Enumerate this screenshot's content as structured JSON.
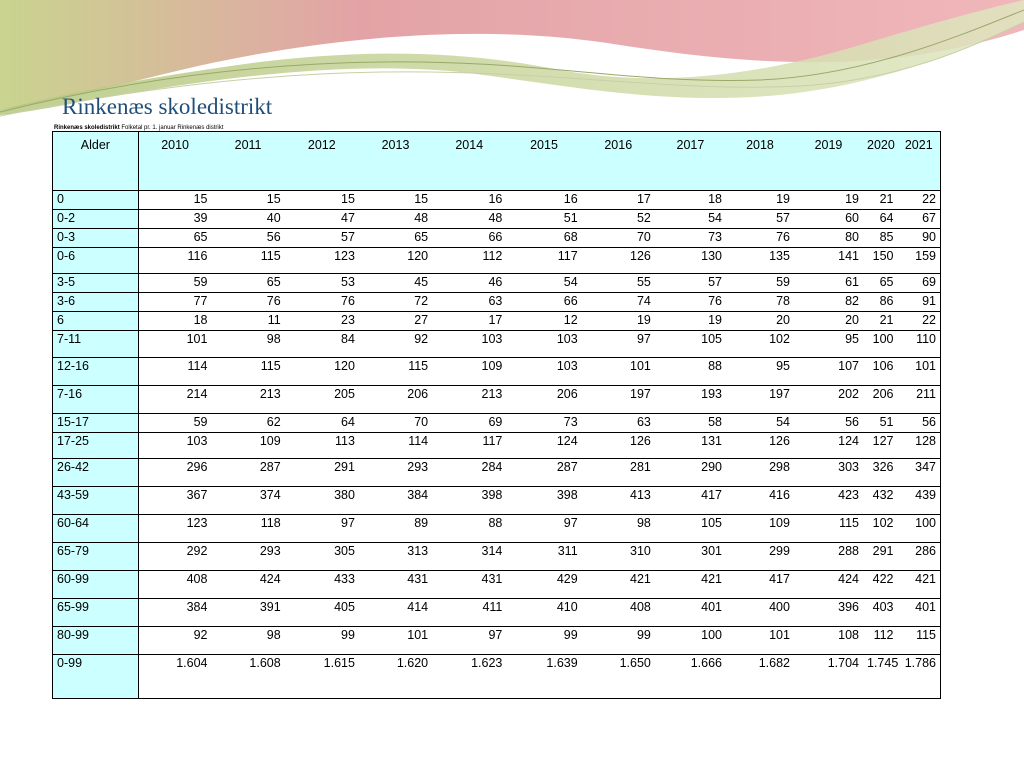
{
  "title": "Rinkenæs skoledistrikt",
  "caption": {
    "bold": "Rinkenæs skoledistrikt",
    "rest": "Folketal pr. 1. januar Rinkenæs distrikt"
  },
  "table": {
    "age_header": "Alder",
    "years": [
      "2010",
      "2011",
      "2012",
      "2013",
      "2014",
      "2015",
      "2016",
      "2017",
      "2018",
      "2019",
      "2020",
      "2021"
    ],
    "rows": [
      {
        "age": "0",
        "values": [
          "15",
          "15",
          "15",
          "15",
          "16",
          "16",
          "17",
          "18",
          "19",
          "19",
          "21",
          "22"
        ]
      },
      {
        "age": "0-2",
        "values": [
          "39",
          "40",
          "47",
          "48",
          "48",
          "51",
          "52",
          "54",
          "57",
          "60",
          "64",
          "67"
        ]
      },
      {
        "age": "0-3",
        "values": [
          "65",
          "56",
          "57",
          "65",
          "66",
          "68",
          "70",
          "73",
          "76",
          "80",
          "85",
          "90"
        ]
      },
      {
        "age": "0-6",
        "values": [
          "116",
          "115",
          "123",
          "120",
          "112",
          "117",
          "126",
          "130",
          "135",
          "141",
          "150",
          "159"
        ]
      },
      {
        "age": "3-5",
        "values": [
          "59",
          "65",
          "53",
          "45",
          "46",
          "54",
          "55",
          "57",
          "59",
          "61",
          "65",
          "69"
        ]
      },
      {
        "age": "3-6",
        "values": [
          "77",
          "76",
          "76",
          "72",
          "63",
          "66",
          "74",
          "76",
          "78",
          "82",
          "86",
          "91"
        ]
      },
      {
        "age": "6",
        "values": [
          "18",
          "11",
          "23",
          "27",
          "17",
          "12",
          "19",
          "19",
          "20",
          "20",
          "21",
          "22"
        ]
      },
      {
        "age": "7-11",
        "values": [
          "101",
          "98",
          "84",
          "92",
          "103",
          "103",
          "97",
          "105",
          "102",
          "95",
          "100",
          "110"
        ]
      },
      {
        "age": "12-16",
        "values": [
          "114",
          "115",
          "120",
          "115",
          "109",
          "103",
          "101",
          "88",
          "95",
          "107",
          "106",
          "101"
        ]
      },
      {
        "age": "7-16",
        "values": [
          "214",
          "213",
          "205",
          "206",
          "213",
          "206",
          "197",
          "193",
          "197",
          "202",
          "206",
          "211"
        ]
      },
      {
        "age": "15-17",
        "values": [
          "59",
          "62",
          "64",
          "70",
          "69",
          "73",
          "63",
          "58",
          "54",
          "56",
          "51",
          "56"
        ]
      },
      {
        "age": "17-25",
        "values": [
          "103",
          "109",
          "113",
          "114",
          "117",
          "124",
          "126",
          "131",
          "126",
          "124",
          "127",
          "128"
        ]
      },
      {
        "age": "26-42",
        "values": [
          "296",
          "287",
          "291",
          "293",
          "284",
          "287",
          "281",
          "290",
          "298",
          "303",
          "326",
          "347"
        ]
      },
      {
        "age": "43-59",
        "values": [
          "367",
          "374",
          "380",
          "384",
          "398",
          "398",
          "413",
          "417",
          "416",
          "423",
          "432",
          "439"
        ]
      },
      {
        "age": "60-64",
        "values": [
          "123",
          "118",
          "97",
          "89",
          "88",
          "97",
          "98",
          "105",
          "109",
          "115",
          "102",
          "100"
        ]
      },
      {
        "age": "65-79",
        "values": [
          "292",
          "293",
          "305",
          "313",
          "314",
          "311",
          "310",
          "301",
          "299",
          "288",
          "291",
          "286"
        ]
      },
      {
        "age": "60-99",
        "values": [
          "408",
          "424",
          "433",
          "431",
          "431",
          "429",
          "421",
          "421",
          "417",
          "424",
          "422",
          "421"
        ]
      },
      {
        "age": "65-99",
        "values": [
          "384",
          "391",
          "405",
          "414",
          "411",
          "410",
          "408",
          "401",
          "400",
          "396",
          "403",
          "401"
        ]
      },
      {
        "age": "80-99",
        "values": [
          "92",
          "98",
          "99",
          "101",
          "97",
          "99",
          "99",
          "100",
          "101",
          "108",
          "112",
          "115"
        ]
      },
      {
        "age": "0-99",
        "values": [
          "1.604",
          "1.608",
          "1.615",
          "1.620",
          "1.623",
          "1.639",
          "1.650",
          "1.666",
          "1.682",
          "1.704",
          "1.745",
          "1.786"
        ]
      }
    ]
  },
  "colors": {
    "title": "#1f4e79",
    "age_column_bg": "#ccffff",
    "header_bg": "#ccffff",
    "swoosh_pink": "#e8a0a8",
    "swoosh_green": "#b8c98a"
  }
}
